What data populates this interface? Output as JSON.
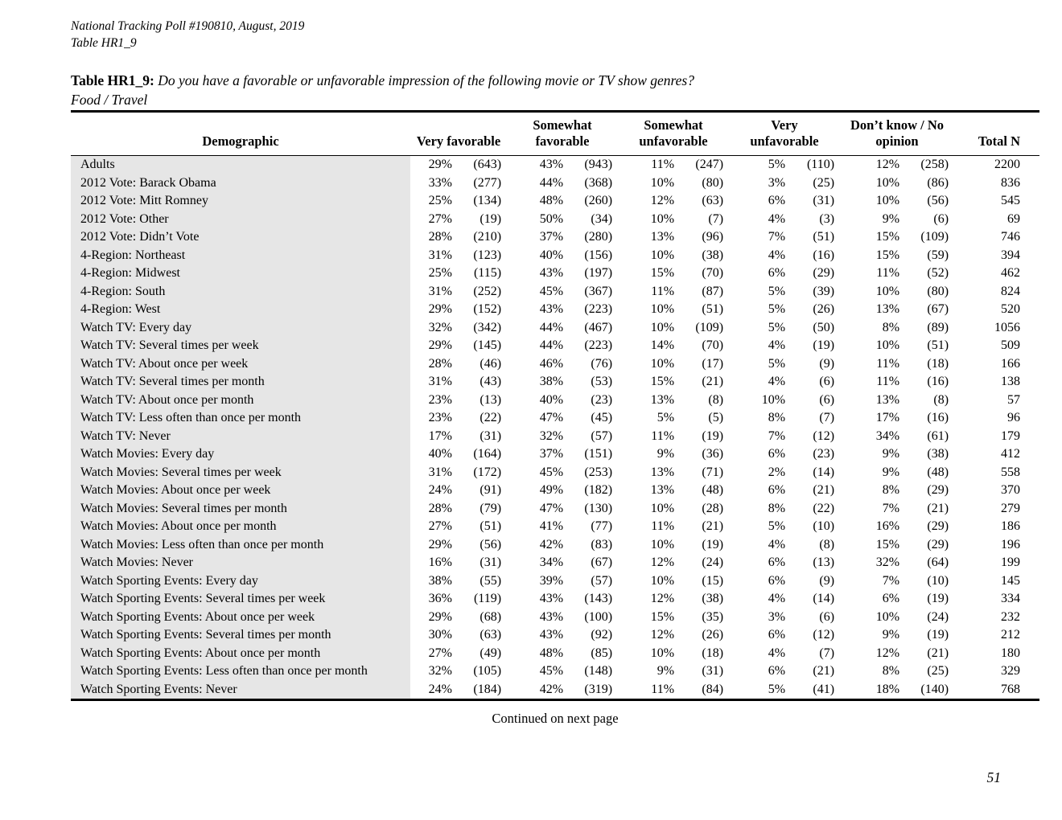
{
  "page": {
    "header_line1": "National Tracking Poll #190810, August, 2019",
    "header_line2": "Table HR1_9",
    "title_label": "Table HR1_9:",
    "title_question": "Do you have a favorable or unfavorable impression of the following movie or TV show genres?",
    "subtitle": "Food / Travel",
    "footer_note": "Continued on next page",
    "page_number": "51"
  },
  "colors": {
    "row_shade": "#e6e6e6",
    "text": "#000000",
    "rule": "#000000"
  },
  "table": {
    "columns": [
      "Demographic",
      "Very favorable",
      "Somewhat favorable",
      "Somewhat unfavorable",
      "Very unfavorable",
      "Don’t know / No opinion",
      "Total N"
    ],
    "rows": [
      [
        "Adults",
        "29%",
        "(643)",
        "43%",
        "(943)",
        "11%",
        "(247)",
        "5%",
        "(110)",
        "12%",
        "(258)",
        "2200"
      ],
      [
        "2012 Vote: Barack Obama",
        "33%",
        "(277)",
        "44%",
        "(368)",
        "10%",
        "(80)",
        "3%",
        "(25)",
        "10%",
        "(86)",
        "836"
      ],
      [
        "2012 Vote: Mitt Romney",
        "25%",
        "(134)",
        "48%",
        "(260)",
        "12%",
        "(63)",
        "6%",
        "(31)",
        "10%",
        "(56)",
        "545"
      ],
      [
        "2012 Vote: Other",
        "27%",
        "(19)",
        "50%",
        "(34)",
        "10%",
        "(7)",
        "4%",
        "(3)",
        "9%",
        "(6)",
        "69"
      ],
      [
        "2012 Vote: Didn’t Vote",
        "28%",
        "(210)",
        "37%",
        "(280)",
        "13%",
        "(96)",
        "7%",
        "(51)",
        "15%",
        "(109)",
        "746"
      ],
      [
        "4-Region: Northeast",
        "31%",
        "(123)",
        "40%",
        "(156)",
        "10%",
        "(38)",
        "4%",
        "(16)",
        "15%",
        "(59)",
        "394"
      ],
      [
        "4-Region: Midwest",
        "25%",
        "(115)",
        "43%",
        "(197)",
        "15%",
        "(70)",
        "6%",
        "(29)",
        "11%",
        "(52)",
        "462"
      ],
      [
        "4-Region: South",
        "31%",
        "(252)",
        "45%",
        "(367)",
        "11%",
        "(87)",
        "5%",
        "(39)",
        "10%",
        "(80)",
        "824"
      ],
      [
        "4-Region: West",
        "29%",
        "(152)",
        "43%",
        "(223)",
        "10%",
        "(51)",
        "5%",
        "(26)",
        "13%",
        "(67)",
        "520"
      ],
      [
        "Watch TV: Every day",
        "32%",
        "(342)",
        "44%",
        "(467)",
        "10%",
        "(109)",
        "5%",
        "(50)",
        "8%",
        "(89)",
        "1056"
      ],
      [
        "Watch TV: Several times per week",
        "29%",
        "(145)",
        "44%",
        "(223)",
        "14%",
        "(70)",
        "4%",
        "(19)",
        "10%",
        "(51)",
        "509"
      ],
      [
        "Watch TV: About once per week",
        "28%",
        "(46)",
        "46%",
        "(76)",
        "10%",
        "(17)",
        "5%",
        "(9)",
        "11%",
        "(18)",
        "166"
      ],
      [
        "Watch TV: Several times per month",
        "31%",
        "(43)",
        "38%",
        "(53)",
        "15%",
        "(21)",
        "4%",
        "(6)",
        "11%",
        "(16)",
        "138"
      ],
      [
        "Watch TV: About once per month",
        "23%",
        "(13)",
        "40%",
        "(23)",
        "13%",
        "(8)",
        "10%",
        "(6)",
        "13%",
        "(8)",
        "57"
      ],
      [
        "Watch TV: Less often than once per month",
        "23%",
        "(22)",
        "47%",
        "(45)",
        "5%",
        "(5)",
        "8%",
        "(7)",
        "17%",
        "(16)",
        "96"
      ],
      [
        "Watch TV: Never",
        "17%",
        "(31)",
        "32%",
        "(57)",
        "11%",
        "(19)",
        "7%",
        "(12)",
        "34%",
        "(61)",
        "179"
      ],
      [
        "Watch Movies: Every day",
        "40%",
        "(164)",
        "37%",
        "(151)",
        "9%",
        "(36)",
        "6%",
        "(23)",
        "9%",
        "(38)",
        "412"
      ],
      [
        "Watch Movies: Several times per week",
        "31%",
        "(172)",
        "45%",
        "(253)",
        "13%",
        "(71)",
        "2%",
        "(14)",
        "9%",
        "(48)",
        "558"
      ],
      [
        "Watch Movies: About once per week",
        "24%",
        "(91)",
        "49%",
        "(182)",
        "13%",
        "(48)",
        "6%",
        "(21)",
        "8%",
        "(29)",
        "370"
      ],
      [
        "Watch Movies: Several times per month",
        "28%",
        "(79)",
        "47%",
        "(130)",
        "10%",
        "(28)",
        "8%",
        "(22)",
        "7%",
        "(21)",
        "279"
      ],
      [
        "Watch Movies: About once per month",
        "27%",
        "(51)",
        "41%",
        "(77)",
        "11%",
        "(21)",
        "5%",
        "(10)",
        "16%",
        "(29)",
        "186"
      ],
      [
        "Watch Movies: Less often than once per month",
        "29%",
        "(56)",
        "42%",
        "(83)",
        "10%",
        "(19)",
        "4%",
        "(8)",
        "15%",
        "(29)",
        "196"
      ],
      [
        "Watch Movies: Never",
        "16%",
        "(31)",
        "34%",
        "(67)",
        "12%",
        "(24)",
        "6%",
        "(13)",
        "32%",
        "(64)",
        "199"
      ],
      [
        "Watch Sporting Events: Every day",
        "38%",
        "(55)",
        "39%",
        "(57)",
        "10%",
        "(15)",
        "6%",
        "(9)",
        "7%",
        "(10)",
        "145"
      ],
      [
        "Watch Sporting Events: Several times per week",
        "36%",
        "(119)",
        "43%",
        "(143)",
        "12%",
        "(38)",
        "4%",
        "(14)",
        "6%",
        "(19)",
        "334"
      ],
      [
        "Watch Sporting Events: About once per week",
        "29%",
        "(68)",
        "43%",
        "(100)",
        "15%",
        "(35)",
        "3%",
        "(6)",
        "10%",
        "(24)",
        "232"
      ],
      [
        "Watch Sporting Events: Several times per month",
        "30%",
        "(63)",
        "43%",
        "(92)",
        "12%",
        "(26)",
        "6%",
        "(12)",
        "9%",
        "(19)",
        "212"
      ],
      [
        "Watch Sporting Events: About once per month",
        "27%",
        "(49)",
        "48%",
        "(85)",
        "10%",
        "(18)",
        "4%",
        "(7)",
        "12%",
        "(21)",
        "180"
      ],
      [
        "Watch Sporting Events: Less often than once per month",
        "32%",
        "(105)",
        "45%",
        "(148)",
        "9%",
        "(31)",
        "6%",
        "(21)",
        "8%",
        "(25)",
        "329"
      ],
      [
        "Watch Sporting Events: Never",
        "24%",
        "(184)",
        "42%",
        "(319)",
        "11%",
        "(84)",
        "5%",
        "(41)",
        "18%",
        "(140)",
        "768"
      ]
    ]
  }
}
